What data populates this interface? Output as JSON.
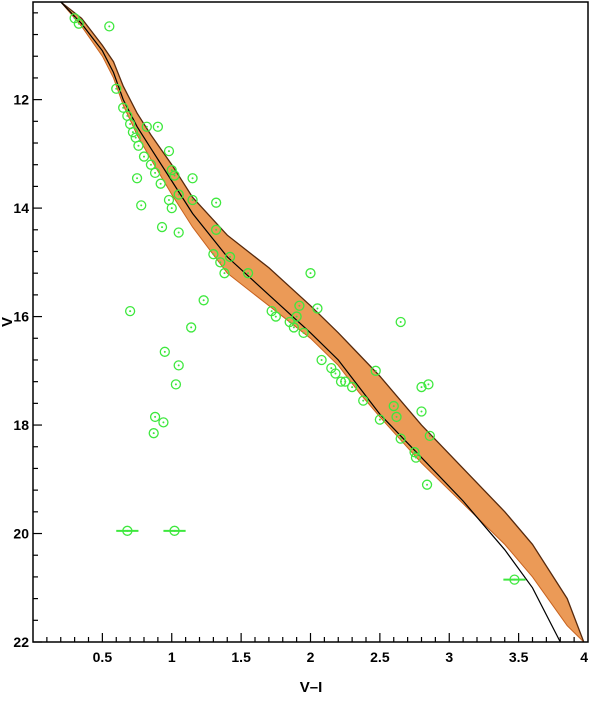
{
  "chart_data": {
    "type": "scatter",
    "title": "",
    "xlabel": "V–I",
    "ylabel": "V",
    "xlim": [
      0.0,
      4.0
    ],
    "ylim": [
      22,
      10.2
    ],
    "y_inverted": true,
    "grid": false,
    "legend": "none",
    "x_ticks": [
      {
        "value": 0.5,
        "label": "0.5"
      },
      {
        "value": 1.0,
        "label": "1"
      },
      {
        "value": 1.5,
        "label": "1.5"
      },
      {
        "value": 2.0,
        "label": "2"
      },
      {
        "value": 2.5,
        "label": "2.5"
      },
      {
        "value": 3.0,
        "label": "3"
      },
      {
        "value": 3.5,
        "label": "3.5"
      },
      {
        "value": 4.0,
        "label": "4"
      }
    ],
    "y_ticks": [
      {
        "value": 12,
        "label": "12"
      },
      {
        "value": 14,
        "label": "14"
      },
      {
        "value": 16,
        "label": "16"
      },
      {
        "value": 18,
        "label": "18"
      },
      {
        "value": 20,
        "label": "20"
      },
      {
        "value": 22,
        "label": "22"
      }
    ],
    "colors": {
      "band": "#e8883a",
      "band_core": "#c8621e",
      "isochrone": "#000000",
      "points": "#3ee83e"
    },
    "isochrone": {
      "x": [
        0.2,
        0.35,
        0.5,
        0.58,
        0.65,
        0.75,
        0.85,
        1.0,
        1.15,
        1.4,
        1.7,
        2.0,
        2.2,
        2.35,
        2.5,
        2.8,
        3.1,
        3.4,
        3.6,
        3.8
      ],
      "y": [
        10.2,
        10.6,
        11.1,
        11.5,
        12.0,
        12.5,
        12.9,
        13.5,
        14.1,
        14.9,
        15.6,
        16.3,
        16.8,
        17.3,
        17.8,
        18.6,
        19.4,
        20.3,
        21.0,
        22.0
      ]
    },
    "band": {
      "x": [
        0.2,
        0.35,
        0.5,
        0.58,
        0.65,
        0.75,
        0.85,
        1.0,
        1.15,
        1.4,
        1.7,
        2.0,
        2.2,
        2.35,
        2.5,
        2.8,
        3.1,
        3.4,
        3.6,
        3.85,
        3.97
      ],
      "y_upper": [
        10.2,
        10.5,
        11.0,
        11.3,
        11.75,
        12.25,
        12.65,
        13.2,
        13.8,
        14.5,
        15.1,
        15.8,
        16.3,
        16.7,
        17.1,
        18.0,
        18.8,
        19.6,
        20.2,
        21.2,
        22.0
      ],
      "y_lower": [
        10.2,
        10.65,
        11.2,
        11.6,
        12.1,
        12.65,
        13.1,
        13.75,
        14.35,
        15.2,
        15.8,
        16.4,
        16.9,
        17.4,
        17.85,
        18.7,
        19.45,
        20.2,
        20.8,
        21.7,
        22.0
      ]
    },
    "series": [
      {
        "values": [
          {
            "x": 0.3,
            "y": 10.5
          },
          {
            "x": 0.33,
            "y": 10.6
          },
          {
            "x": 0.55,
            "y": 10.65
          },
          {
            "x": 0.6,
            "y": 11.8
          },
          {
            "x": 0.65,
            "y": 12.15
          },
          {
            "x": 0.68,
            "y": 12.3
          },
          {
            "x": 0.7,
            "y": 12.45
          },
          {
            "x": 0.72,
            "y": 12.6
          },
          {
            "x": 0.74,
            "y": 12.7
          },
          {
            "x": 0.76,
            "y": 12.85
          },
          {
            "x": 0.75,
            "y": 13.45
          },
          {
            "x": 0.8,
            "y": 13.05
          },
          {
            "x": 0.82,
            "y": 12.5
          },
          {
            "x": 0.85,
            "y": 13.2
          },
          {
            "x": 0.88,
            "y": 13.35
          },
          {
            "x": 0.78,
            "y": 13.95
          },
          {
            "x": 0.9,
            "y": 12.5
          },
          {
            "x": 0.92,
            "y": 13.55
          },
          {
            "x": 0.98,
            "y": 12.95
          },
          {
            "x": 1.0,
            "y": 13.3
          },
          {
            "x": 1.02,
            "y": 13.4
          },
          {
            "x": 1.05,
            "y": 13.75
          },
          {
            "x": 0.98,
            "y": 13.85
          },
          {
            "x": 1.0,
            "y": 14.0
          },
          {
            "x": 0.93,
            "y": 14.35
          },
          {
            "x": 1.05,
            "y": 14.45
          },
          {
            "x": 1.15,
            "y": 13.45
          },
          {
            "x": 1.15,
            "y": 13.85
          },
          {
            "x": 1.32,
            "y": 13.9
          },
          {
            "x": 1.32,
            "y": 14.4
          },
          {
            "x": 1.3,
            "y": 14.85
          },
          {
            "x": 1.35,
            "y": 15.0
          },
          {
            "x": 1.38,
            "y": 15.2
          },
          {
            "x": 1.42,
            "y": 14.9
          },
          {
            "x": 1.55,
            "y": 15.2
          },
          {
            "x": 1.23,
            "y": 15.7
          },
          {
            "x": 0.7,
            "y": 15.9
          },
          {
            "x": 1.14,
            "y": 16.2
          },
          {
            "x": 0.95,
            "y": 16.65
          },
          {
            "x": 1.05,
            "y": 16.9
          },
          {
            "x": 1.03,
            "y": 17.25
          },
          {
            "x": 0.88,
            "y": 17.85
          },
          {
            "x": 0.94,
            "y": 17.95
          },
          {
            "x": 0.87,
            "y": 18.15
          },
          {
            "x": 1.72,
            "y": 15.9
          },
          {
            "x": 1.75,
            "y": 16.0
          },
          {
            "x": 1.85,
            "y": 16.1
          },
          {
            "x": 1.88,
            "y": 16.2
          },
          {
            "x": 1.9,
            "y": 16.0
          },
          {
            "x": 1.92,
            "y": 15.8
          },
          {
            "x": 1.95,
            "y": 16.3
          },
          {
            "x": 2.0,
            "y": 15.2
          },
          {
            "x": 2.05,
            "y": 15.85
          },
          {
            "x": 2.08,
            "y": 16.8
          },
          {
            "x": 2.15,
            "y": 16.95
          },
          {
            "x": 2.18,
            "y": 17.05
          },
          {
            "x": 2.22,
            "y": 17.2
          },
          {
            "x": 2.25,
            "y": 17.2
          },
          {
            "x": 2.3,
            "y": 17.3
          },
          {
            "x": 2.38,
            "y": 17.55
          },
          {
            "x": 2.47,
            "y": 17.0
          },
          {
            "x": 2.5,
            "y": 17.9
          },
          {
            "x": 2.6,
            "y": 17.65
          },
          {
            "x": 2.62,
            "y": 17.85
          },
          {
            "x": 2.65,
            "y": 16.1
          },
          {
            "x": 2.65,
            "y": 18.25
          },
          {
            "x": 2.75,
            "y": 18.5
          },
          {
            "x": 2.76,
            "y": 18.6
          },
          {
            "x": 2.8,
            "y": 17.3
          },
          {
            "x": 2.85,
            "y": 17.25
          },
          {
            "x": 2.8,
            "y": 17.75
          },
          {
            "x": 2.86,
            "y": 18.2
          },
          {
            "x": 2.84,
            "y": 19.1
          }
        ]
      },
      {
        "x_error": 0.08,
        "values": [
          {
            "x": 0.68,
            "y": 19.95
          },
          {
            "x": 1.02,
            "y": 19.95
          },
          {
            "x": 3.47,
            "y": 20.85
          }
        ]
      }
    ]
  }
}
